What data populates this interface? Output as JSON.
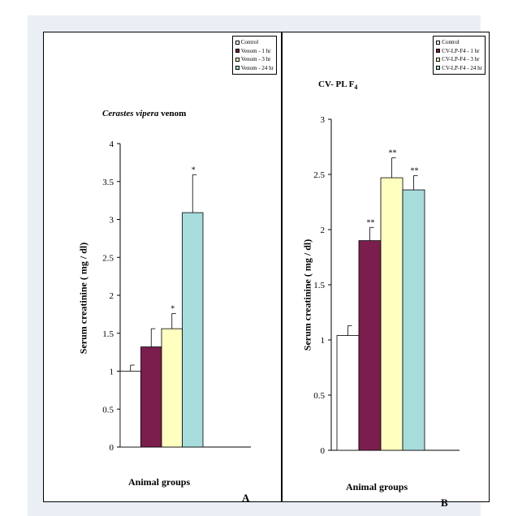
{
  "chart_data": [
    {
      "type": "bar",
      "panel": "A",
      "title_italic": "Cerastes vipera",
      "title_rest": " venom",
      "xlabel": "Animal groups",
      "ylabel": "Serum creatinine ( mg / dl)",
      "ylim": [
        0,
        4
      ],
      "yticks": [
        "0",
        "0.5",
        "1",
        "1.5",
        "2",
        "2.5",
        "3",
        "3.5",
        "4"
      ],
      "categories": [
        "Control",
        "Venom - 1 hr",
        "Venom - 3 hr",
        "Venom - 24 hr"
      ],
      "values": [
        1.0,
        1.32,
        1.56,
        3.09
      ],
      "errors": [
        0.08,
        0.24,
        0.2,
        0.5
      ],
      "significance": [
        "",
        "",
        "*",
        "*"
      ],
      "colors": [
        "#ffffff",
        "#7b1e4e",
        "#ffffc0",
        "#a6dcdc"
      ],
      "legend_placement": "top-right",
      "grid": false
    },
    {
      "type": "bar",
      "panel": "B",
      "title_main": "CV- PL F",
      "title_sub": "4",
      "xlabel": "Animal groups",
      "ylabel": "Serum creatinine ( mg / dl)",
      "ylim": [
        0,
        3
      ],
      "yticks": [
        "0",
        "0.5",
        "1",
        "1.5",
        "2",
        "2.5",
        "3"
      ],
      "categories": [
        "Control",
        "CV-LP-F4 - 1 hr",
        "CV-LP-F4 - 3 hr",
        "CV-LP-F4 - 24 hr"
      ],
      "values": [
        1.04,
        1.9,
        2.47,
        2.36
      ],
      "errors": [
        0.09,
        0.12,
        0.18,
        0.13
      ],
      "significance": [
        "",
        "**",
        "**",
        "**"
      ],
      "colors": [
        "#ffffff",
        "#7b1e4e",
        "#ffffc0",
        "#a6dcdc"
      ],
      "legend_placement": "top-right",
      "grid": false
    }
  ]
}
